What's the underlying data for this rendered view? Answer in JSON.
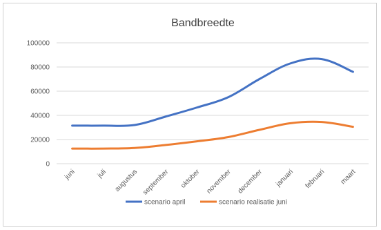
{
  "chart_data": {
    "type": "line",
    "title": "Bandbreedte",
    "categories": [
      "juni",
      "juli",
      "augustus",
      "september",
      "oktober",
      "november",
      "december",
      "januari",
      "februari",
      "maart"
    ],
    "y_ticks": [
      "0",
      "20000",
      "40000",
      "60000",
      "80000",
      "100000"
    ],
    "ylim": [
      0,
      100000
    ],
    "grid": true,
    "legend_position": "bottom",
    "series": [
      {
        "name": "scenario april",
        "color": "#4472c4",
        "values": [
          31500,
          31500,
          32000,
          39000,
          46500,
          55000,
          70000,
          83000,
          86500,
          76000
        ]
      },
      {
        "name": "scenario realisatie juni",
        "color": "#ed7d31",
        "values": [
          12500,
          12500,
          13000,
          15500,
          18500,
          22000,
          28000,
          33500,
          34500,
          30500
        ]
      }
    ]
  }
}
